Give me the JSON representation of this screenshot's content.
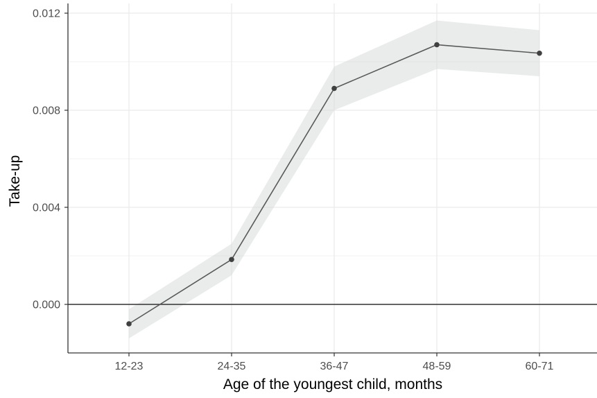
{
  "chart_data": {
    "type": "line",
    "xlabel": "Age of the youngest child, months",
    "ylabel": "Take-up",
    "categories": [
      "12-23",
      "24-35",
      "36-47",
      "48-59",
      "60-71"
    ],
    "series": [
      {
        "values": [
          -0.0008,
          0.00185,
          0.0089,
          0.0107,
          0.01035
        ],
        "ci_lower": [
          -0.0014,
          0.0012,
          0.008,
          0.0097,
          0.0094
        ],
        "ci_upper": [
          -0.0002,
          0.0025,
          0.0098,
          0.0117,
          0.0113
        ]
      }
    ],
    "ylim": [
      -0.002,
      0.0124
    ],
    "yticks": [
      0.0,
      0.004,
      0.008,
      0.012
    ],
    "ytick_labels": [
      "0.000",
      "0.004",
      "0.008",
      "0.012"
    ],
    "reference_line_y": 0.0,
    "grid": true,
    "legend": "none",
    "colors": {
      "line": "#595959",
      "points": "#404040",
      "ribbon": "#d9dcdc",
      "grid": "#ebebeb",
      "reference": "#333333"
    }
  }
}
